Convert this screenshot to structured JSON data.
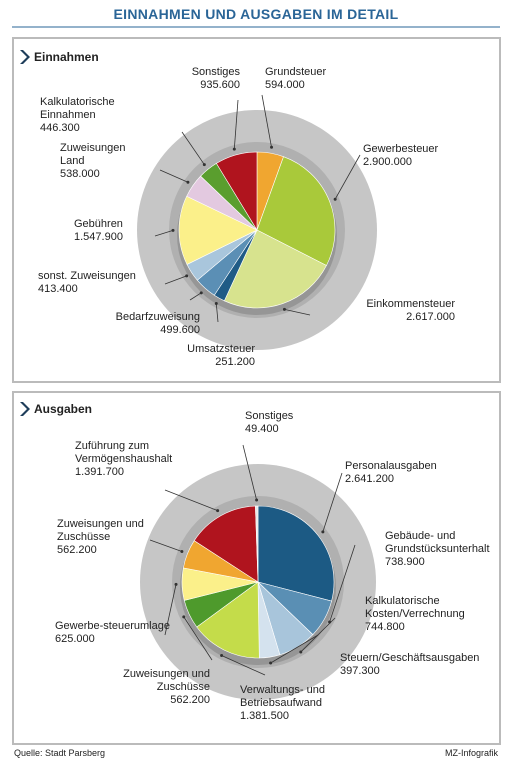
{
  "header": {
    "title": "EINNAHMEN UND AUSGABEN IM DETAIL"
  },
  "chart_data": [
    {
      "type": "pie",
      "title": "Einnahmen",
      "categories": [
        "Grundsteuer",
        "Gewerbesteuer",
        "Einkommensteuer",
        "Umsatzsteuer",
        "Bedarfzuweisung",
        "sonst. Zuweisungen",
        "Gebühren",
        "Zuweisungen Land",
        "Kalkulatorische Einnahmen",
        "Sonstiges"
      ],
      "values": [
        594000,
        2900000,
        2617000,
        251200,
        499600,
        413400,
        1547900,
        538000,
        446300,
        935600
      ],
      "value_labels": [
        "594.000",
        "2.900.000",
        "2.617.000",
        "251.200",
        "499.600",
        "413.400",
        "1.547.900",
        "538.000",
        "446.300",
        "935.600"
      ],
      "colors": [
        "#f0a630",
        "#a9c93a",
        "#d7e38e",
        "#1f5b86",
        "#5b8fb5",
        "#a9c6dc",
        "#fbf08a",
        "#e3c9e0",
        "#5a9e2e",
        "#b0141e"
      ]
    },
    {
      "type": "pie",
      "title": "Ausgaben",
      "categories": [
        "Personalausgaben",
        "Gebäude- und Grundstücksunterhalt",
        "Kalkulatorische Kosten/Verrechnung",
        "Steuern/Geschäftsausgaben",
        "Verwaltungs- und Betriebsaufwand",
        "Zuweisungen und Zuschüsse",
        "Gewerbe-steuerumlage",
        "Zuweisungen und Zuschüsse",
        "Zuführung zum Vermögenshaushalt",
        "Sonstiges"
      ],
      "values": [
        2641200,
        738900,
        744800,
        397300,
        1381500,
        562200,
        625000,
        562200,
        1391700,
        49400
      ],
      "value_labels": [
        "2.641.200",
        "738.900",
        "744.800",
        "397.300",
        "1.381.500",
        "562.200",
        "625.000",
        "562.200",
        "1.391.700",
        "49.400"
      ],
      "colors": [
        "#1c5a84",
        "#5a8fb4",
        "#a8c5db",
        "#d4e2ee",
        "#c4dc4a",
        "#4e9a2c",
        "#fbf08a",
        "#f0a630",
        "#b0141e",
        "#e8e8e8"
      ]
    }
  ],
  "footer": {
    "source": "Quelle: Stadt Parsberg",
    "credit": "MZ-Infografik"
  }
}
